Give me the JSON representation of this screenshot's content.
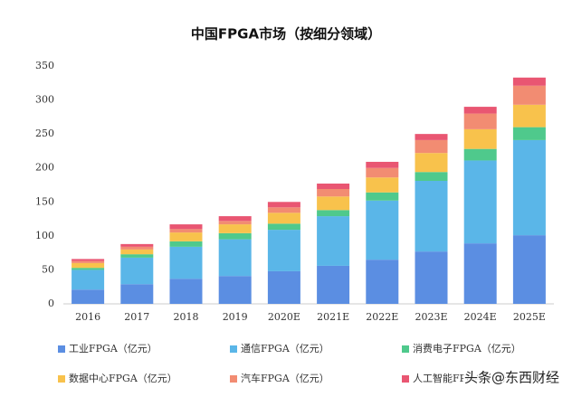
{
  "chart_data": {
    "type": "stacked_bar",
    "title": "中国FPGA市场（按细分领域）",
    "categories": [
      "2016",
      "2017",
      "2018",
      "2019",
      "2020E",
      "2021E",
      "2022E",
      "2023E",
      "2024E",
      "2025E"
    ],
    "series": [
      {
        "name": "工业FPGA（亿元）",
        "color": "#5b8ee2",
        "values": [
          21,
          29,
          37,
          41,
          48,
          56,
          65,
          77,
          89,
          101
        ]
      },
      {
        "name": "通信FPGA（亿元）",
        "color": "#5ab6e8",
        "values": [
          29,
          39,
          47,
          54,
          61,
          73,
          87,
          104,
          122,
          140
        ]
      },
      {
        "name": "消费电子FPGA（亿元）",
        "color": "#4fc98c",
        "values": [
          3,
          5,
          8,
          9,
          9,
          9,
          12,
          13,
          17,
          19
        ]
      },
      {
        "name": "数据中心FPGA（亿元）",
        "color": "#f8c24c",
        "values": [
          7,
          7,
          13,
          13,
          16,
          20,
          22,
          28,
          29,
          33
        ]
      },
      {
        "name": "汽车FPGA（亿元）",
        "color": "#f28c72",
        "values": [
          3,
          4,
          5,
          5,
          8,
          11,
          14,
          19,
          23,
          28
        ]
      },
      {
        "name": "人工智能FPGA（亿元）",
        "color": "#e95672",
        "values": [
          3,
          4,
          7,
          7,
          8,
          8,
          9,
          9,
          10,
          12
        ]
      }
    ],
    "ylim": [
      0,
      350
    ],
    "yticks": [
      0,
      50,
      100,
      150,
      200,
      250,
      300,
      350
    ],
    "watermark": "头条@东西财经"
  }
}
